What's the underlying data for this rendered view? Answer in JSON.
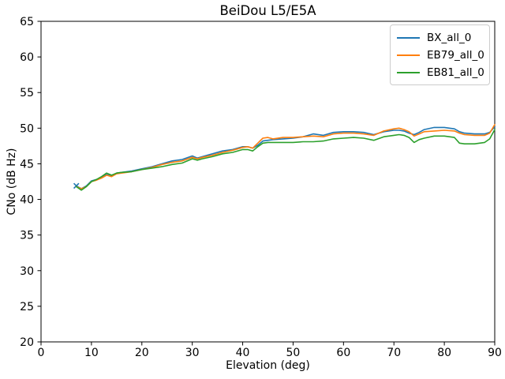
{
  "chart_data": {
    "type": "line",
    "title": "BeiDou L5/E5A",
    "xlabel": "Elevation (deg)",
    "ylabel": "CNo (dB Hz)",
    "xlim": [
      0,
      90
    ],
    "ylim": [
      20,
      65
    ],
    "xticks": [
      0,
      10,
      20,
      30,
      40,
      50,
      60,
      70,
      80,
      90
    ],
    "yticks": [
      20,
      25,
      30,
      35,
      40,
      45,
      50,
      55,
      60,
      65
    ],
    "grid": false,
    "legend_position": "upper right",
    "x": [
      7,
      8,
      9,
      10,
      11,
      12,
      13,
      14,
      15,
      16,
      18,
      20,
      22,
      24,
      26,
      28,
      30,
      31,
      32,
      34,
      36,
      38,
      40,
      41,
      42,
      43,
      44,
      45,
      46,
      48,
      50,
      52,
      54,
      56,
      58,
      60,
      62,
      64,
      66,
      68,
      70,
      71,
      72,
      73,
      74,
      75,
      76,
      78,
      80,
      82,
      83,
      84,
      86,
      88,
      89,
      90
    ],
    "series": [
      {
        "name": "BX_all_0",
        "color": "#1f77b4",
        "marker_first": "x",
        "values": [
          41.9,
          41.5,
          41.9,
          42.6,
          42.8,
          43.1,
          43.5,
          43.3,
          43.7,
          43.8,
          44.0,
          44.3,
          44.6,
          45.0,
          45.4,
          45.6,
          46.1,
          45.8,
          46.0,
          46.4,
          46.8,
          47.0,
          47.4,
          47.4,
          47.2,
          47.6,
          48.2,
          48.3,
          48.4,
          48.5,
          48.6,
          48.8,
          49.2,
          49.0,
          49.4,
          49.5,
          49.5,
          49.4,
          49.1,
          49.5,
          49.7,
          49.7,
          49.6,
          49.3,
          49.1,
          49.4,
          49.8,
          50.1,
          50.1,
          49.9,
          49.5,
          49.3,
          49.2,
          49.2,
          49.4,
          50.2
        ]
      },
      {
        "name": "EB79_all_0",
        "color": "#ff7f0e",
        "marker_first": "",
        "values": [
          41.8,
          41.5,
          41.8,
          42.5,
          42.7,
          43.0,
          43.4,
          43.2,
          43.6,
          43.7,
          43.9,
          44.2,
          44.5,
          44.9,
          45.2,
          45.4,
          45.9,
          45.7,
          45.9,
          46.2,
          46.6,
          46.9,
          47.3,
          47.4,
          47.2,
          47.9,
          48.6,
          48.7,
          48.5,
          48.7,
          48.7,
          48.8,
          48.9,
          48.8,
          49.2,
          49.3,
          49.3,
          49.2,
          49.0,
          49.6,
          49.9,
          50.0,
          49.8,
          49.5,
          48.9,
          49.2,
          49.5,
          49.6,
          49.7,
          49.6,
          49.3,
          49.1,
          49.0,
          49.0,
          49.3,
          50.5
        ]
      },
      {
        "name": "EB81_all_0",
        "color": "#2ca02c",
        "marker_first": "",
        "values": [
          41.8,
          41.3,
          41.8,
          42.5,
          42.8,
          43.2,
          43.7,
          43.4,
          43.7,
          43.8,
          43.9,
          44.2,
          44.4,
          44.6,
          44.9,
          45.1,
          45.7,
          45.5,
          45.7,
          46.0,
          46.4,
          46.6,
          47.0,
          47.0,
          46.8,
          47.4,
          47.9,
          48.0,
          48.0,
          48.0,
          48.0,
          48.1,
          48.1,
          48.2,
          48.5,
          48.6,
          48.7,
          48.6,
          48.3,
          48.8,
          49.0,
          49.1,
          49.0,
          48.7,
          48.0,
          48.4,
          48.6,
          48.9,
          48.9,
          48.7,
          47.9,
          47.8,
          47.8,
          48.0,
          48.5,
          49.8
        ]
      }
    ]
  }
}
